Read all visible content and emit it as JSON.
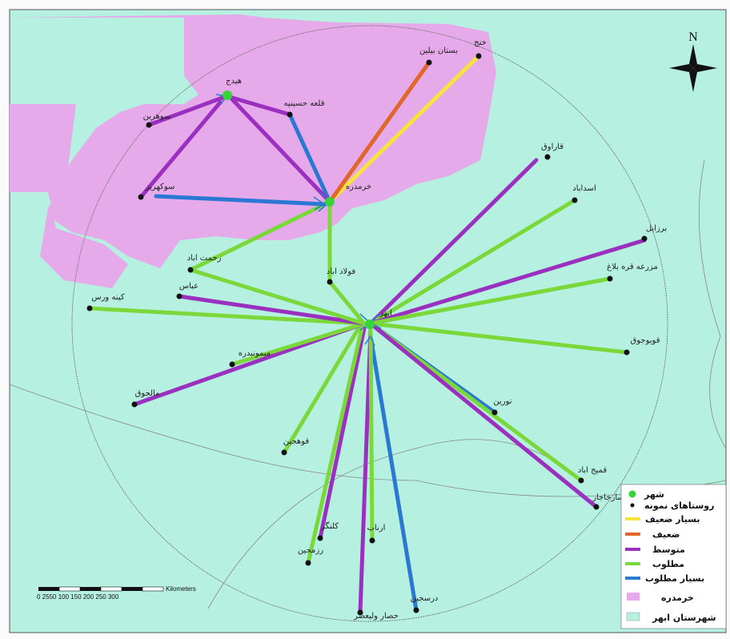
{
  "map": {
    "north_label": "N",
    "scale": {
      "ticks": "0 2550   100  150  200  250  300",
      "unit": "Kilometers"
    },
    "colors": {
      "sea": "#b5f0e0",
      "region": "#e6a9ea",
      "very_weak": "#f6e43c",
      "weak": "#e0662a",
      "medium": "#9b2fbf",
      "good": "#7ad83a",
      "very_good": "#2a78d4",
      "city": "#36d43a"
    }
  },
  "legend": {
    "city": "شهر",
    "villages": "روستاهای نمونه",
    "very_weak": "بسیار ضعیف",
    "weak": "ضعیف",
    "medium": "متوسط",
    "good": "مطلوب",
    "very_good": "بسیار مطلوب",
    "khorramdarreh": "خرمدره",
    "abhar": "شهرستان ابهر"
  },
  "places": {
    "hidaj": "هیدج",
    "khorramdarreh": "خرمدره",
    "abhar": "ابهر",
    "qaleh_hasanieh": "قلعه حسینیه",
    "sohrin": "سوهرین",
    "sonbolabad": "سوکهریز",
    "khoj": "خنج",
    "bostan": "بستان بیلین",
    "qaraluq": "قاراوق",
    "asadabad": "اسداباد",
    "baraval": "برزایل",
    "mazraeh": "مزرعه قره بلاغ",
    "qoyojuq": "قویوجوق",
    "nurin": "نورین",
    "qomeshabad": "قمیج اباد",
    "sarajar": "سارخاجار",
    "darsajin": "درسجین",
    "arnab": "ارناب",
    "kolangar": "کلنگر",
    "razmajin": "رزمجین",
    "qoheyin": "قوهجین",
    "maliqoq": "مالجوق",
    "kabnehvars": "کینه ورس",
    "abbas": "عباس",
    "rahmatabad": "رحمت اباد",
    "fuladabad": "فولاد اباد",
    "mimonbadreh": "میمونبدره",
    "hesar": "حصار ولیعصر"
  }
}
